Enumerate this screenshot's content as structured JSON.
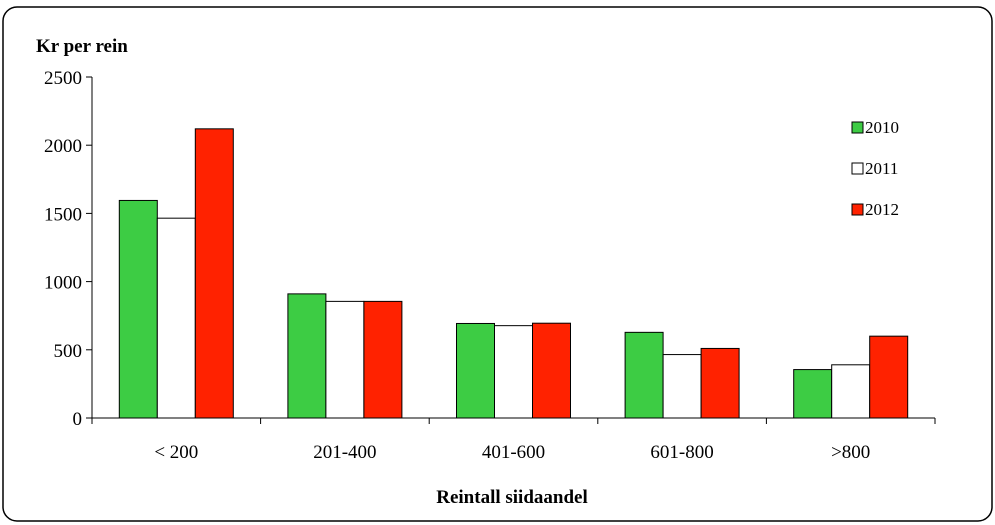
{
  "chart_data": {
    "type": "bar",
    "title": "",
    "ylabel": "Kr per rein",
    "xlabel": "Reintall siidaandel",
    "categories": [
      "< 200",
      "201-400",
      "401-600",
      "601-800",
      ">800"
    ],
    "series": [
      {
        "name": "2010",
        "color": "#3dcc44",
        "values": [
          1595,
          910,
          693,
          628,
          355
        ]
      },
      {
        "name": "2011",
        "color": "#ffffff",
        "values": [
          1465,
          855,
          677,
          465,
          390
        ]
      },
      {
        "name": "2012",
        "color": "#ff2200",
        "values": [
          2120,
          855,
          695,
          510,
          600
        ]
      }
    ],
    "ylim": [
      0,
      2500
    ],
    "yticks": [
      "0",
      "500",
      "1000",
      "1500",
      "2000",
      "2500"
    ],
    "grid": false,
    "legend": "right"
  }
}
